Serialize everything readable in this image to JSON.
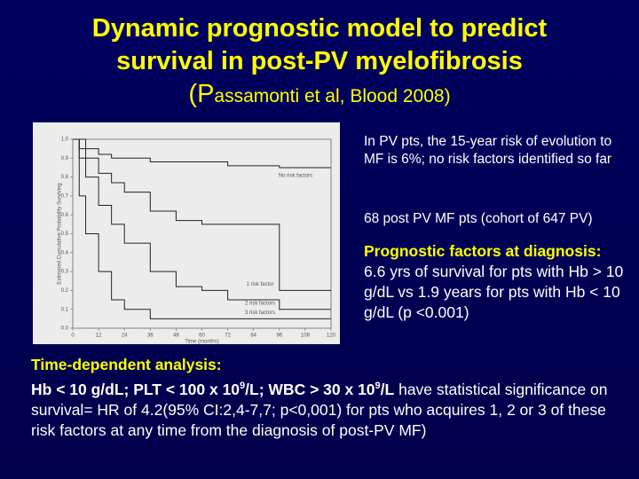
{
  "title": [
    "Dynamic prognostic model to predict",
    "survival in post-PV myelofibrosis"
  ],
  "citation": "(Passamonti et al, Blood 2008)",
  "figure": {
    "type": "line",
    "ylabel": "Estimated Cumulative Probability Surviving",
    "xlabel": "Time (months)",
    "x": [
      0,
      3,
      6,
      12,
      18,
      24,
      36,
      48,
      60,
      72,
      84,
      96,
      108,
      120
    ],
    "xlim": [
      0,
      120
    ],
    "xticks": [
      0,
      12,
      24,
      36,
      48,
      60,
      72,
      84,
      96,
      108,
      120
    ],
    "ylim": [
      0,
      1
    ],
    "yticks": [
      {
        "value": 0,
        "label": "0.0"
      },
      0.1,
      0.2,
      0.3,
      0.4,
      0.5,
      0.6,
      0.7,
      0.8,
      0.9,
      {
        "value": 1,
        "label": "1.0"
      }
    ],
    "series": [
      {
        "name": "No risk factors",
        "color": "#222222",
        "values": [
          1,
          1,
          0.95,
          0.92,
          0.9,
          0.9,
          0.88,
          0.88,
          0.88,
          0.86,
          0.86,
          0.85,
          0.85,
          0.85
        ]
      },
      {
        "name": "1 risk factor",
        "color": "#222222",
        "values": [
          1,
          0.95,
          0.9,
          0.82,
          0.77,
          0.72,
          0.62,
          0.57,
          0.55,
          0.55,
          0.55,
          0.2,
          0.2,
          0.2
        ]
      },
      {
        "name": "2 risk factors",
        "color": "#222222",
        "values": [
          1,
          0.9,
          0.8,
          0.65,
          0.55,
          0.45,
          0.3,
          0.22,
          0.2,
          0.15,
          0.15,
          0.1,
          0.1,
          0.1
        ]
      },
      {
        "name": "3 risk factors",
        "color": "#222222",
        "values": [
          1,
          0.7,
          0.5,
          0.3,
          0.15,
          0.1,
          0.05,
          0.05,
          0.05,
          0.05,
          0.05,
          0.05,
          0.05,
          0.05
        ]
      }
    ]
  },
  "notes": [
    "In PV pts, the 15-year risk of evolution to MF is 6%; no risk factors identified so far",
    "68 post PV MF pts (cohort of 647 PV)"
  ],
  "prognostic": {
    "heading": "Prognostic factors at diagnosis:",
    "text": "6.6 yrs of survival for pts with Hb > 10 g/dL vs 1.9 years for pts with Hb < 10 g/dL (p <0.001)"
  },
  "analysis": {
    "heading": "Time-dependent analysis:",
    "runs": [
      {
        "text": "Hb < 10 g/dL; PLT < 100 x 10",
        "bold": true
      },
      {
        "text": "9",
        "bold": true,
        "sup": true
      },
      {
        "text": "/L; WBC > 30 x 10",
        "bold": true
      },
      {
        "text": "9",
        "bold": true,
        "sup": true
      },
      {
        "text": "/L",
        "bold": true
      },
      {
        "text": " have statistical significance on survival= HR of 4.2(95% CI:2,4-7,7; p<0,001) for pts who acquires 1, 2 or 3 of these risk factors at any time from the diagnosis of post-PV MF)"
      }
    ]
  }
}
